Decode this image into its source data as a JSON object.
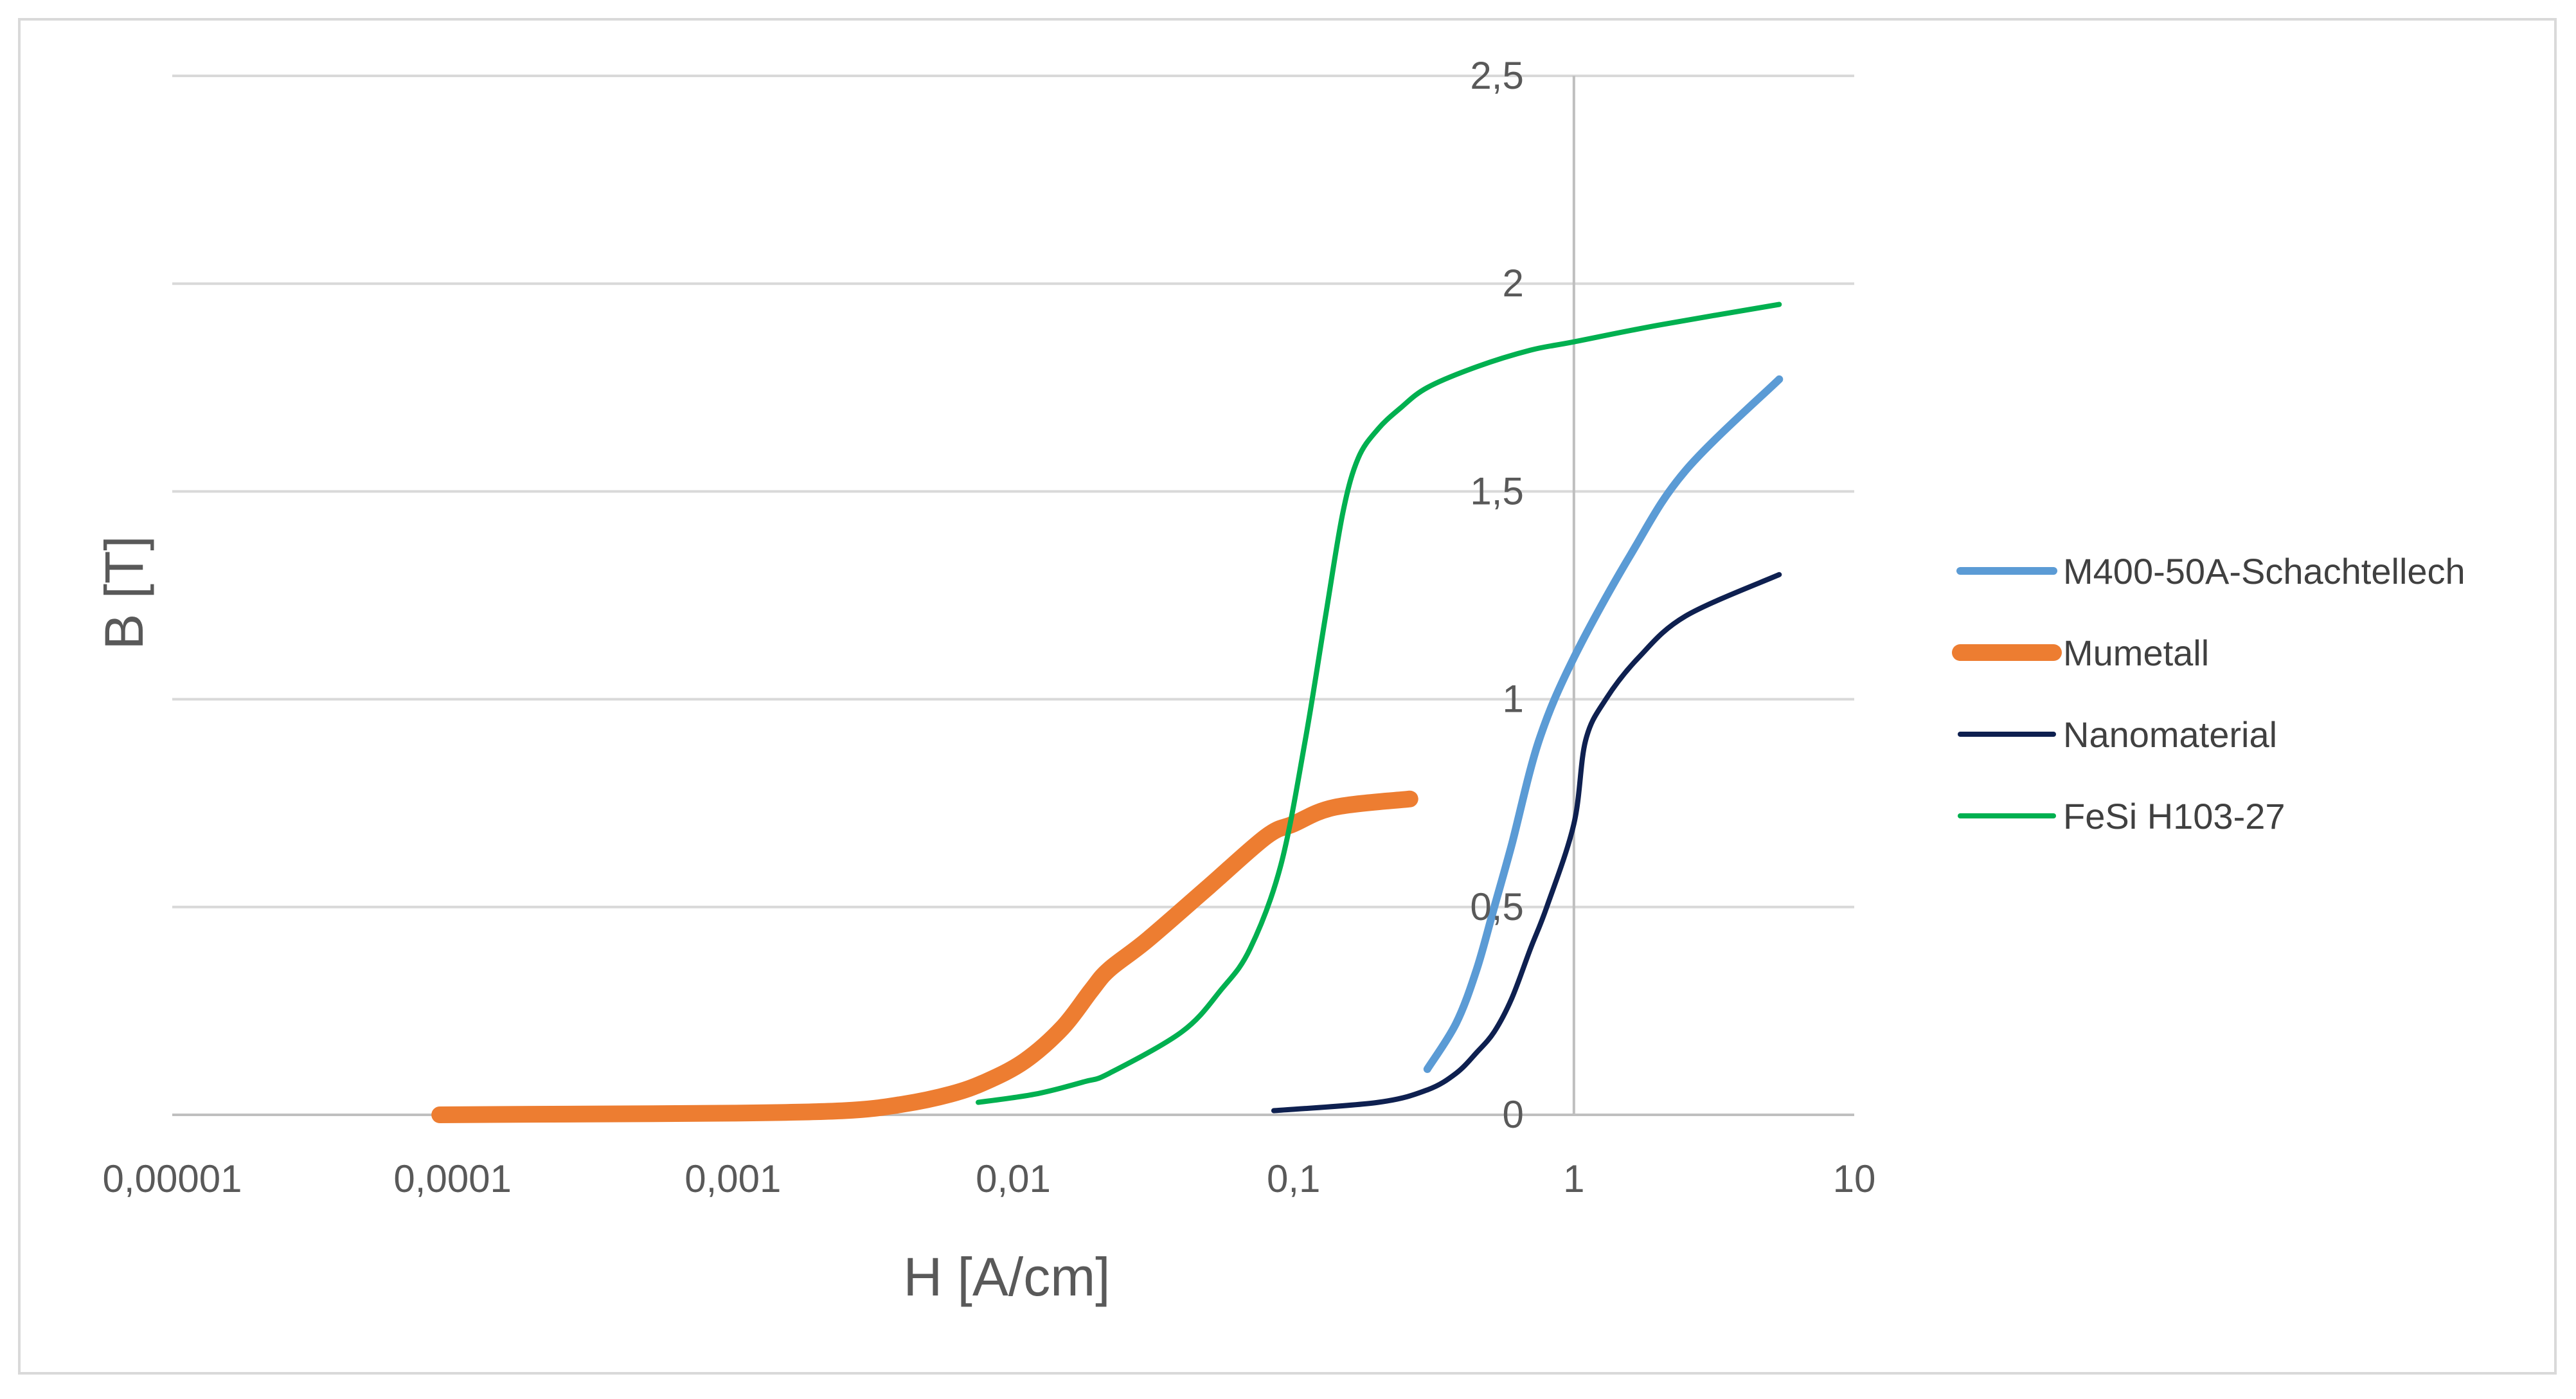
{
  "chart_data": {
    "type": "line",
    "title": "",
    "xlabel": "H [A/cm]",
    "ylabel": "B [T]",
    "x_scale": "log",
    "xlim": [
      1e-05,
      10
    ],
    "ylim": [
      0,
      2.5
    ],
    "x_ticks": [
      "0,00001",
      "0,0001",
      "0,001",
      "0,01",
      "0,1",
      "1",
      "10"
    ],
    "y_ticks": [
      "0",
      "0,5",
      "1",
      "1,5",
      "2",
      "2,5"
    ],
    "grid": "horizontal",
    "legend_position": "right",
    "series": [
      {
        "name": "M400-50A-Schachtellech",
        "color": "#5b9bd5",
        "x": [
          0.3,
          0.38,
          0.45,
          0.52,
          0.6,
          0.75,
          1.0,
          1.6,
          2.5,
          5.4
        ],
        "y": [
          0.11,
          0.22,
          0.35,
          0.5,
          0.65,
          0.9,
          1.1,
          1.35,
          1.55,
          1.77
        ]
      },
      {
        "name": "Mumetall",
        "color": "#ed7d31",
        "x": [
          9e-05,
          0.0003,
          0.001,
          0.0025,
          0.004,
          0.006,
          0.008,
          0.011,
          0.015,
          0.019,
          0.022,
          0.03,
          0.05,
          0.08,
          0.1,
          0.14,
          0.26
        ],
        "y": [
          0.0,
          0.002,
          0.004,
          0.01,
          0.025,
          0.05,
          0.08,
          0.13,
          0.21,
          0.3,
          0.35,
          0.42,
          0.55,
          0.67,
          0.7,
          0.74,
          0.76
        ]
      },
      {
        "name": "Nanomaterial",
        "color": "#0e2050",
        "x": [
          0.085,
          0.2,
          0.3,
          0.38,
          0.45,
          0.52,
          0.6,
          0.7,
          0.8,
          1.0,
          1.1,
          1.3,
          1.7,
          2.5,
          5.4
        ],
        "y": [
          0.01,
          0.03,
          0.06,
          0.1,
          0.15,
          0.2,
          0.28,
          0.4,
          0.5,
          0.7,
          0.9,
          1.0,
          1.1,
          1.2,
          1.3
        ]
      },
      {
        "name": "FeSi H103-27",
        "color": "#00b050",
        "x": [
          0.0075,
          0.012,
          0.018,
          0.022,
          0.04,
          0.055,
          0.07,
          0.09,
          0.11,
          0.13,
          0.15,
          0.17,
          0.2,
          0.24,
          0.3,
          0.45,
          0.7,
          1.0,
          2.0,
          5.4
        ],
        "y": [
          0.03,
          0.05,
          0.08,
          0.1,
          0.2,
          0.3,
          0.4,
          0.6,
          0.9,
          1.2,
          1.45,
          1.58,
          1.65,
          1.7,
          1.75,
          1.8,
          1.84,
          1.86,
          1.9,
          1.95
        ]
      }
    ]
  }
}
